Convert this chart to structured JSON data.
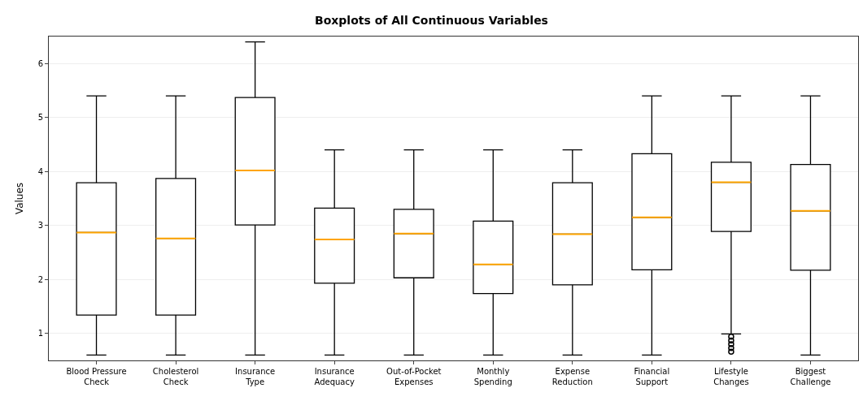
{
  "chart_data": {
    "type": "box",
    "title": "Boxplots of All Continuous Variables",
    "ylabel": "Values",
    "categories": [
      "Blood Pressure\nCheck",
      "Cholesterol\nCheck",
      "Insurance\nType",
      "Insurance\nAdequacy",
      "Out-of-Pocket\nExpenses",
      "Monthly\nSpending",
      "Expense\nReduction",
      "Financial\nSupport",
      "Lifestyle\nChanges",
      "Biggest\nChallenge"
    ],
    "boxes": [
      {
        "low": 0.6,
        "q1": 1.34,
        "median": 2.87,
        "q3": 3.79,
        "high": 5.4
      },
      {
        "low": 0.6,
        "q1": 1.34,
        "median": 2.76,
        "q3": 3.87,
        "high": 5.4
      },
      {
        "low": 0.6,
        "q1": 3.01,
        "median": 4.02,
        "q3": 5.37,
        "high": 6.4
      },
      {
        "low": 0.6,
        "q1": 1.93,
        "median": 2.74,
        "q3": 3.32,
        "high": 4.4
      },
      {
        "low": 0.6,
        "q1": 2.03,
        "median": 2.85,
        "q3": 3.3,
        "high": 4.4
      },
      {
        "low": 0.6,
        "q1": 1.74,
        "median": 2.28,
        "q3": 3.08,
        "high": 4.4
      },
      {
        "low": 0.6,
        "q1": 1.9,
        "median": 2.84,
        "q3": 3.79,
        "high": 4.4
      },
      {
        "low": 0.6,
        "q1": 2.18,
        "median": 3.15,
        "q3": 4.33,
        "high": 5.4
      },
      {
        "low": 0.99,
        "q1": 2.89,
        "median": 3.8,
        "q3": 4.17,
        "high": 5.4,
        "outliers": [
          0.94,
          0.87,
          0.8,
          0.73,
          0.66
        ]
      },
      {
        "low": 0.6,
        "q1": 2.17,
        "median": 3.27,
        "q3": 4.13,
        "high": 5.4
      }
    ],
    "color": "#000000",
    "ylim": [
      0.5,
      6.5
    ],
    "yticks": [
      1,
      2,
      3,
      4,
      5,
      6
    ],
    "grid": "y"
  }
}
